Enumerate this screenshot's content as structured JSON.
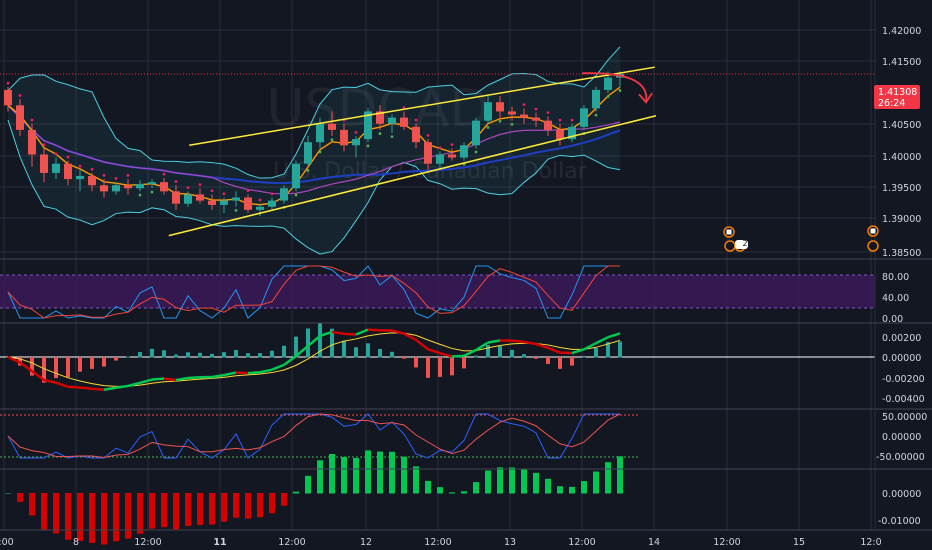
{
  "symbol": {
    "ticker": "USDCAD",
    "subtitle": "U.S. Dollar / Canadian Dollar"
  },
  "colors": {
    "background": "#131722",
    "grid": "#2a2e39",
    "up": "#26a69a",
    "down": "#ef5350",
    "channel": "#ffeb3b",
    "bollinger": "#4dd0e1",
    "ema_fast": "#ff9800",
    "ma_purple": "#ab47bc",
    "ma_blue": "#1e3fc4",
    "sar_up": "#4caf50",
    "sar_down": "#e91e63",
    "stoch_k": "#2196f3",
    "stoch_d": "#f44336",
    "stoch_band": "#3b1a59",
    "macd_green": "#00c853",
    "macd_red": "#d50000",
    "signal": "#fdd835",
    "hist_up": "#26a69a",
    "hist_down": "#ef5350",
    "price_tag": "#f23645",
    "arrow": "#f23645"
  },
  "price_axis": {
    "labels": [
      "1.42000",
      "1.41500",
      "1.40500",
      "1.40000",
      "1.39500",
      "1.39000",
      "1.38500"
    ],
    "current_price": "1.41308",
    "countdown": "26:24"
  },
  "stoch_axis": {
    "labels": [
      "80.00",
      "40.00",
      "0.00"
    ]
  },
  "macd_axis": {
    "labels": [
      "0.00200",
      "0.00000",
      "-0.00200",
      "-0.00400"
    ]
  },
  "cci_axis": {
    "labels": [
      "50.00000",
      "0.00000",
      "-50.00000"
    ]
  },
  "hist_axis": {
    "labels": [
      "0.00000",
      "-0.01000"
    ]
  },
  "time_axis": {
    "labels": [
      "2:00",
      "8",
      "12:00",
      "11",
      "12:00",
      "12",
      "12:00",
      "13",
      "12:00",
      "14",
      "12:00",
      "15",
      "12:0"
    ]
  },
  "events": {
    "badge_count": "2"
  },
  "chart_data": {
    "type": "candlestick",
    "ylim": [
      1.383,
      1.4235
    ],
    "channel_upper": {
      "from": [
        15.1,
        1.4015
      ],
      "to": [
        53.9,
        1.4142
      ]
    },
    "channel_lower": {
      "from": [
        13.4,
        1.3868
      ],
      "to": [
        54,
        1.4063
      ]
    },
    "projection_arrow": {
      "from": [
        44.5,
        1.4132
      ],
      "to": [
        51.5,
        1.4085
      ]
    },
    "ohlc": [
      [
        0,
        1.4105,
        1.411,
        1.407,
        1.408
      ],
      [
        1,
        1.408,
        1.409,
        1.403,
        1.404
      ],
      [
        2,
        1.404,
        1.405,
        1.398,
        1.4
      ],
      [
        3,
        1.4,
        1.401,
        1.3955,
        1.397
      ],
      [
        4,
        1.397,
        1.3995,
        1.396,
        1.3985
      ],
      [
        5,
        1.3985,
        1.399,
        1.395,
        1.396
      ],
      [
        6,
        1.396,
        1.3975,
        1.394,
        1.3965
      ],
      [
        7,
        1.3965,
        1.397,
        1.394,
        1.395
      ],
      [
        8,
        1.395,
        1.396,
        1.393,
        1.394
      ],
      [
        9,
        1.394,
        1.3955,
        1.3935,
        1.395
      ],
      [
        10,
        1.395,
        1.396,
        1.3935,
        1.3945
      ],
      [
        11,
        1.3945,
        1.3958,
        1.394,
        1.3952
      ],
      [
        12,
        1.3952,
        1.396,
        1.3945,
        1.3955
      ],
      [
        13,
        1.3955,
        1.3962,
        1.3935,
        1.394
      ],
      [
        14,
        1.394,
        1.395,
        1.391,
        1.392
      ],
      [
        15,
        1.392,
        1.394,
        1.3915,
        1.3935
      ],
      [
        16,
        1.3935,
        1.3945,
        1.392,
        1.3925
      ],
      [
        17,
        1.3925,
        1.3935,
        1.391,
        1.3918
      ],
      [
        18,
        1.3918,
        1.393,
        1.3905,
        1.3925
      ],
      [
        19,
        1.3925,
        1.394,
        1.3915,
        1.393
      ],
      [
        20,
        1.393,
        1.3935,
        1.3905,
        1.391
      ],
      [
        21,
        1.391,
        1.392,
        1.39,
        1.3915
      ],
      [
        22,
        1.3915,
        1.393,
        1.391,
        1.3925
      ],
      [
        23,
        1.3925,
        1.395,
        1.392,
        1.3945
      ],
      [
        24,
        1.3945,
        1.399,
        1.394,
        1.3985
      ],
      [
        25,
        1.3985,
        1.403,
        1.398,
        1.402
      ],
      [
        26,
        1.402,
        1.406,
        1.401,
        1.405
      ],
      [
        27,
        1.405,
        1.407,
        1.403,
        1.404
      ],
      [
        28,
        1.404,
        1.405,
        1.4005,
        1.4015
      ],
      [
        29,
        1.4015,
        1.403,
        1.3995,
        1.4025
      ],
      [
        30,
        1.4025,
        1.4075,
        1.402,
        1.407
      ],
      [
        31,
        1.407,
        1.408,
        1.404,
        1.405
      ],
      [
        32,
        1.405,
        1.4065,
        1.4035,
        1.406
      ],
      [
        33,
        1.406,
        1.407,
        1.404,
        1.4045
      ],
      [
        34,
        1.4045,
        1.405,
        1.401,
        1.402
      ],
      [
        35,
        1.402,
        1.4025,
        1.3975,
        1.3985
      ],
      [
        36,
        1.3985,
        1.4005,
        1.3975,
        1.4
      ],
      [
        37,
        1.4,
        1.401,
        1.399,
        1.3995
      ],
      [
        38,
        1.3995,
        1.402,
        1.399,
        1.4015
      ],
      [
        39,
        1.4015,
        1.406,
        1.401,
        1.4055
      ],
      [
        40,
        1.4055,
        1.4095,
        1.405,
        1.4085
      ],
      [
        41,
        1.4085,
        1.4095,
        1.406,
        1.407
      ],
      [
        42,
        1.407,
        1.4078,
        1.4055,
        1.4065
      ],
      [
        43,
        1.4065,
        1.4075,
        1.405,
        1.406
      ],
      [
        44,
        1.406,
        1.4068,
        1.4045,
        1.4055
      ],
      [
        45,
        1.4055,
        1.4062,
        1.403,
        1.404
      ],
      [
        46,
        1.404,
        1.405,
        1.4015,
        1.4025
      ],
      [
        47,
        1.4025,
        1.405,
        1.402,
        1.4045
      ],
      [
        48,
        1.4045,
        1.408,
        1.404,
        1.4075
      ],
      [
        49,
        1.4075,
        1.411,
        1.407,
        1.4105
      ],
      [
        50,
        1.4105,
        1.4135,
        1.41,
        1.4125
      ],
      [
        51,
        1.4125,
        1.4135,
        1.411,
        1.4131
      ]
    ]
  }
}
